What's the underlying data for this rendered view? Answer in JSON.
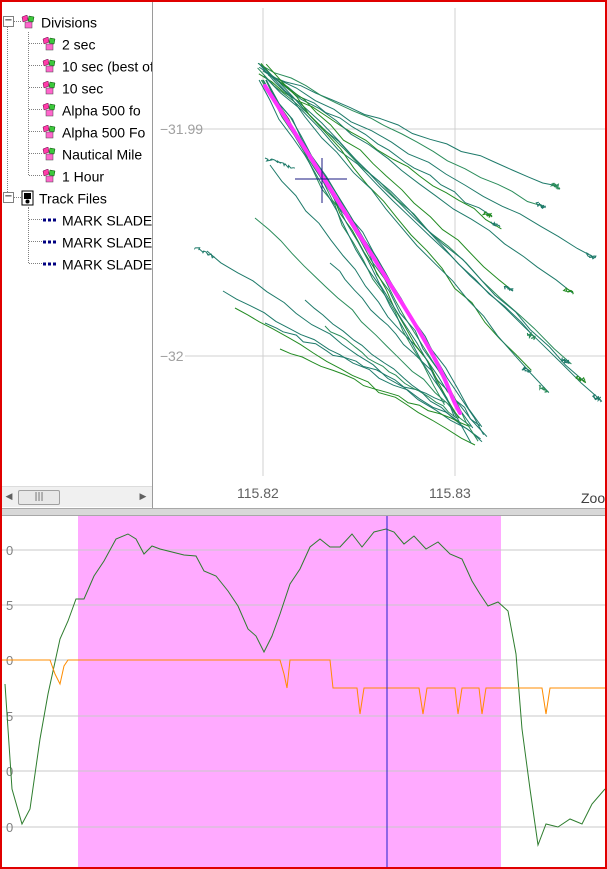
{
  "tree": {
    "groups": [
      {
        "label": "Divisions",
        "icon": "division-icon",
        "items": [
          {
            "label": "2 sec"
          },
          {
            "label": "10 sec (best of"
          },
          {
            "label": "10 sec"
          },
          {
            "label": "Alpha 500 fo"
          },
          {
            "label": "Alpha 500 Fo"
          },
          {
            "label": "Nautical Mile"
          },
          {
            "label": "1 Hour"
          }
        ]
      },
      {
        "label": "Track Files",
        "icon": "track-files-icon",
        "items": [
          {
            "label": "MARK SLADE"
          },
          {
            "label": "MARK SLADE"
          },
          {
            "label": "MARK SLADE"
          }
        ]
      }
    ],
    "expander_symbol": "−",
    "scroll_left": "◀",
    "scroll_right": "▶",
    "scroll_thumb": "|||"
  },
  "map": {
    "lat_labels": [
      "31.99",
      "32"
    ],
    "lon_labels": [
      "115.82",
      "115.83"
    ],
    "zoom_label": "Zoo",
    "lat_prefix": "−"
  },
  "chart": {
    "y_labels": [
      "0",
      "5",
      "0",
      "5",
      "0",
      "0"
    ],
    "colors": {
      "speed": "#2e7d2e",
      "heading": "#ff8c00",
      "highlight": "#ffaaff",
      "cursor": "#2020cc"
    }
  },
  "colors": {
    "track": "#1e7a6a",
    "track_alt": "#228b22",
    "best_run": "#ff33ff",
    "frame": "#e00000"
  }
}
